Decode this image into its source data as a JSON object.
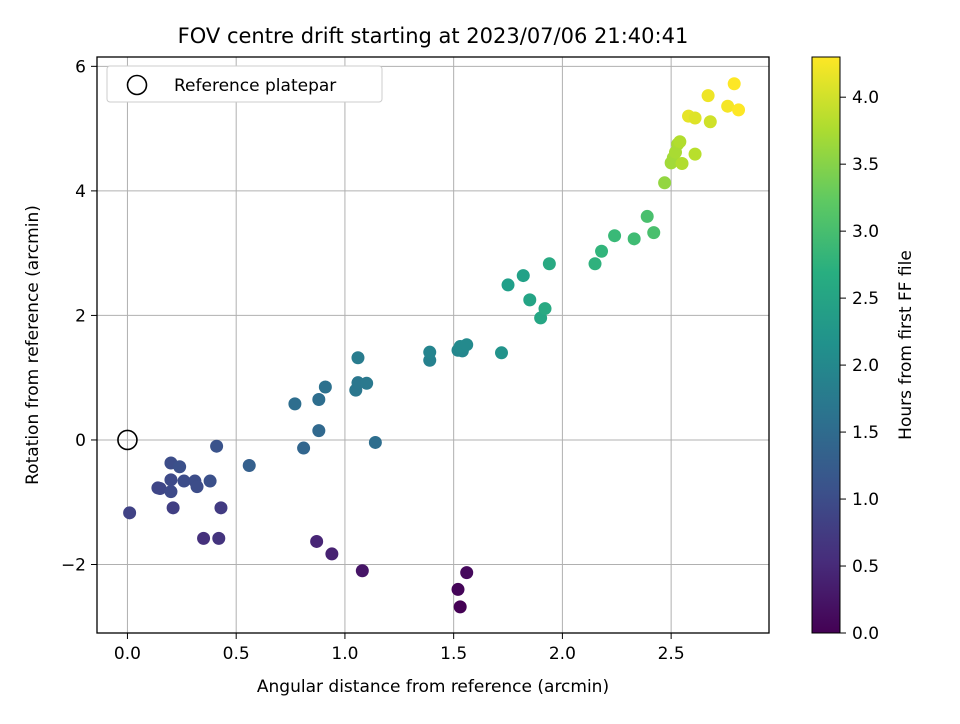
{
  "chart_data": {
    "type": "scatter",
    "title": "FOV centre drift starting at 2023/07/06 21:40:41",
    "xlabel": "Angular distance from reference (arcmin)",
    "ylabel": "Rotation from reference (arcmin)",
    "xlim": [
      -0.14,
      2.95
    ],
    "ylim": [
      -3.1,
      6.15
    ],
    "xticks": [
      0.0,
      0.5,
      1.0,
      1.5,
      2.0,
      2.5
    ],
    "xtick_labels": [
      "0.0",
      "0.5",
      "1.0",
      "1.5",
      "2.0",
      "2.5"
    ],
    "yticks": [
      -2,
      0,
      2,
      4,
      6
    ],
    "ytick_labels": [
      "−2",
      "0",
      "2",
      "4",
      "6"
    ],
    "grid": true,
    "legend": {
      "position": "top-left",
      "entries": [
        "Reference platepar"
      ]
    },
    "reference_point": {
      "x": 0.0,
      "y": 0.0
    },
    "colorbar": {
      "label": "Hours from first FF file",
      "colormap": "viridis",
      "range": [
        0.0,
        4.3
      ],
      "ticks": [
        0.0,
        0.5,
        1.0,
        1.5,
        2.0,
        2.5,
        3.0,
        3.5,
        4.0
      ],
      "tick_labels": [
        "0.0",
        "0.5",
        "1.0",
        "1.5",
        "2.0",
        "2.5",
        "3.0",
        "3.5",
        "4.0"
      ]
    },
    "points": [
      {
        "x": 1.53,
        "y": -2.68,
        "h": 0.0
      },
      {
        "x": 1.52,
        "y": -2.4,
        "h": 0.05
      },
      {
        "x": 1.56,
        "y": -2.13,
        "h": 0.1
      },
      {
        "x": 1.08,
        "y": -2.1,
        "h": 0.25
      },
      {
        "x": 0.94,
        "y": -1.83,
        "h": 0.4
      },
      {
        "x": 0.87,
        "y": -1.63,
        "h": 0.45
      },
      {
        "x": 0.35,
        "y": -1.58,
        "h": 0.6
      },
      {
        "x": 0.42,
        "y": -1.58,
        "h": 0.65
      },
      {
        "x": 0.43,
        "y": -1.09,
        "h": 0.75
      },
      {
        "x": 0.21,
        "y": -1.09,
        "h": 0.8
      },
      {
        "x": 0.01,
        "y": -1.17,
        "h": 0.85
      },
      {
        "x": 0.14,
        "y": -0.77,
        "h": 0.9
      },
      {
        "x": 0.15,
        "y": -0.78,
        "h": 0.9
      },
      {
        "x": 0.2,
        "y": -0.83,
        "h": 0.95
      },
      {
        "x": 0.2,
        "y": -0.64,
        "h": 0.95
      },
      {
        "x": 0.26,
        "y": -0.66,
        "h": 1.0
      },
      {
        "x": 0.31,
        "y": -0.66,
        "h": 1.0
      },
      {
        "x": 0.32,
        "y": -0.75,
        "h": 1.0
      },
      {
        "x": 0.38,
        "y": -0.66,
        "h": 1.05
      },
      {
        "x": 0.2,
        "y": -0.37,
        "h": 1.0
      },
      {
        "x": 0.24,
        "y": -0.43,
        "h": 1.05
      },
      {
        "x": 0.41,
        "y": -0.1,
        "h": 1.1
      },
      {
        "x": 0.56,
        "y": -0.41,
        "h": 1.3
      },
      {
        "x": 0.81,
        "y": -0.13,
        "h": 1.4
      },
      {
        "x": 0.88,
        "y": 0.15,
        "h": 1.45
      },
      {
        "x": 0.77,
        "y": 0.58,
        "h": 1.55
      },
      {
        "x": 0.88,
        "y": 0.65,
        "h": 1.55
      },
      {
        "x": 0.91,
        "y": 0.85,
        "h": 1.6
      },
      {
        "x": 1.14,
        "y": -0.04,
        "h": 1.55
      },
      {
        "x": 1.05,
        "y": 0.8,
        "h": 1.7
      },
      {
        "x": 1.06,
        "y": 0.92,
        "h": 1.7
      },
      {
        "x": 1.1,
        "y": 0.91,
        "h": 1.75
      },
      {
        "x": 1.06,
        "y": 1.32,
        "h": 1.8
      },
      {
        "x": 1.39,
        "y": 1.28,
        "h": 1.9
      },
      {
        "x": 1.39,
        "y": 1.41,
        "h": 1.95
      },
      {
        "x": 1.52,
        "y": 1.44,
        "h": 2.0
      },
      {
        "x": 1.54,
        "y": 1.43,
        "h": 2.0
      },
      {
        "x": 1.53,
        "y": 1.5,
        "h": 2.05
      },
      {
        "x": 1.56,
        "y": 1.53,
        "h": 2.05
      },
      {
        "x": 1.72,
        "y": 1.4,
        "h": 2.2
      },
      {
        "x": 1.75,
        "y": 2.49,
        "h": 2.4
      },
      {
        "x": 1.82,
        "y": 2.64,
        "h": 2.45
      },
      {
        "x": 1.85,
        "y": 2.25,
        "h": 2.5
      },
      {
        "x": 1.9,
        "y": 1.96,
        "h": 2.55
      },
      {
        "x": 1.92,
        "y": 2.11,
        "h": 2.6
      },
      {
        "x": 1.94,
        "y": 2.83,
        "h": 2.6
      },
      {
        "x": 2.15,
        "y": 2.83,
        "h": 2.75
      },
      {
        "x": 2.18,
        "y": 3.03,
        "h": 2.8
      },
      {
        "x": 2.24,
        "y": 3.28,
        "h": 2.9
      },
      {
        "x": 2.33,
        "y": 3.23,
        "h": 2.95
      },
      {
        "x": 2.39,
        "y": 3.59,
        "h": 3.05
      },
      {
        "x": 2.42,
        "y": 3.33,
        "h": 3.05
      },
      {
        "x": 2.47,
        "y": 4.13,
        "h": 3.6
      },
      {
        "x": 2.5,
        "y": 4.45,
        "h": 3.7
      },
      {
        "x": 2.51,
        "y": 4.53,
        "h": 3.7
      },
      {
        "x": 2.52,
        "y": 4.62,
        "h": 3.75
      },
      {
        "x": 2.53,
        "y": 4.75,
        "h": 3.75
      },
      {
        "x": 2.54,
        "y": 4.79,
        "h": 3.8
      },
      {
        "x": 2.55,
        "y": 4.44,
        "h": 3.8
      },
      {
        "x": 2.61,
        "y": 4.59,
        "h": 3.85
      },
      {
        "x": 2.58,
        "y": 5.2,
        "h": 4.15
      },
      {
        "x": 2.61,
        "y": 5.17,
        "h": 4.1
      },
      {
        "x": 2.67,
        "y": 5.53,
        "h": 4.2
      },
      {
        "x": 2.68,
        "y": 5.11,
        "h": 4.0
      },
      {
        "x": 2.76,
        "y": 5.36,
        "h": 4.25
      },
      {
        "x": 2.79,
        "y": 5.72,
        "h": 4.3
      },
      {
        "x": 2.81,
        "y": 5.3,
        "h": 4.3
      }
    ]
  }
}
